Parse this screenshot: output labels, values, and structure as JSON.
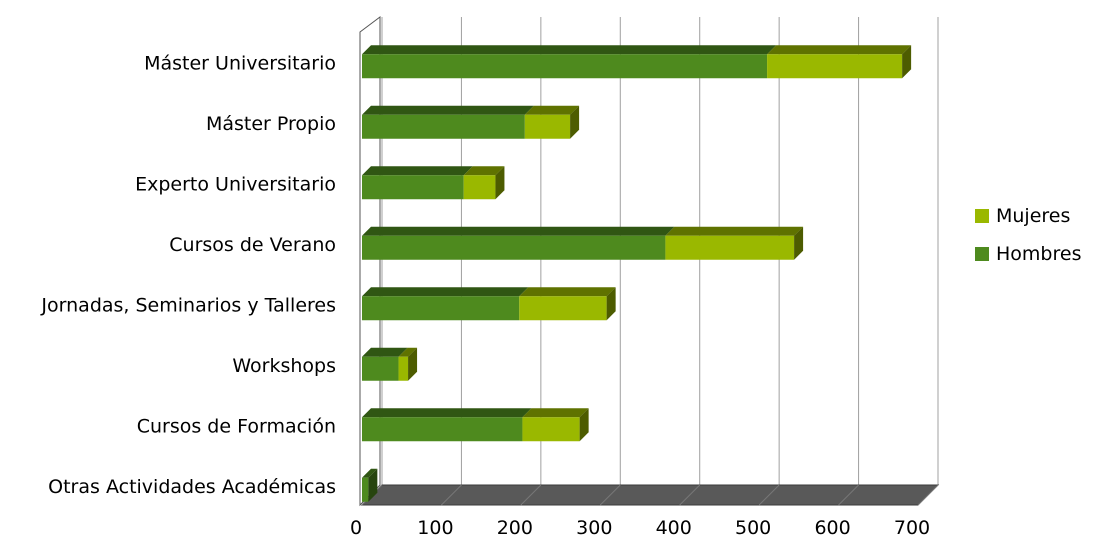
{
  "chart_data": {
    "type": "bar",
    "orientation": "horizontal",
    "stacked": true,
    "three_d": true,
    "categories": [
      "Máster Universitario",
      "Máster Propio",
      "Experto Universitario",
      "Cursos de Verano",
      "Jornadas, Seminarios y Talleres",
      "Workshops",
      "Cursos de Formación",
      "Otras Actividades Académicas"
    ],
    "series": [
      {
        "name": "Hombres",
        "color": "#4e8a1e",
        "values": [
          510,
          205,
          128,
          382,
          198,
          46,
          202,
          8
        ]
      },
      {
        "name": "Mujeres",
        "color": "#9ab800",
        "values": [
          170,
          57,
          40,
          162,
          110,
          12,
          72,
          0
        ]
      }
    ],
    "xlim": [
      0,
      700
    ],
    "xticks": [
      "0",
      "100",
      "200",
      "300",
      "400",
      "500",
      "600",
      "700"
    ],
    "grid": true,
    "legend_position": "right",
    "title": "",
    "xlabel": "",
    "ylabel": ""
  }
}
